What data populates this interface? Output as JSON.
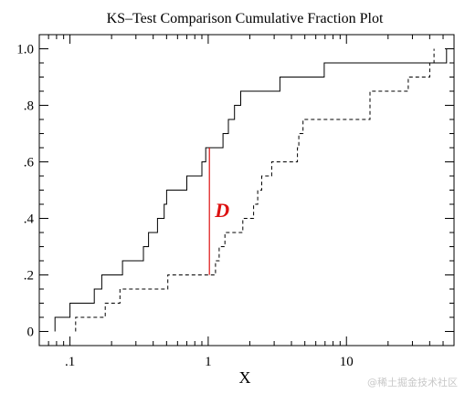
{
  "watermark": "@稀土掘金技术社区",
  "chart_data": {
    "type": "line",
    "title": "KS–Test Comparison Cumulative Fraction Plot",
    "xlabel": "X",
    "ylabel": "",
    "xscale": "log",
    "xlim": [
      0.06,
      60
    ],
    "ylim": [
      -0.05,
      1.05
    ],
    "x_ticks": [
      {
        "value": 0.1,
        "label": ".1"
      },
      {
        "value": 1,
        "label": "1"
      },
      {
        "value": 10,
        "label": "10"
      }
    ],
    "y_ticks": [
      {
        "value": 0,
        "label": "0"
      },
      {
        "value": 0.2,
        "label": ".2"
      },
      {
        "value": 0.4,
        "label": ".4"
      },
      {
        "value": 0.6,
        "label": ".6"
      },
      {
        "value": 0.8,
        "label": ".8"
      },
      {
        "value": 1.0,
        "label": "1.0"
      }
    ],
    "grid": false,
    "legend": "none",
    "series": [
      {
        "style": "solid",
        "color": "#000000",
        "points": [
          [
            0.078,
            0
          ],
          [
            0.078,
            0.05
          ],
          [
            0.1,
            0.05
          ],
          [
            0.1,
            0.1
          ],
          [
            0.15,
            0.1
          ],
          [
            0.15,
            0.15
          ],
          [
            0.17,
            0.15
          ],
          [
            0.17,
            0.2
          ],
          [
            0.24,
            0.2
          ],
          [
            0.24,
            0.25
          ],
          [
            0.34,
            0.25
          ],
          [
            0.34,
            0.3
          ],
          [
            0.37,
            0.3
          ],
          [
            0.37,
            0.35
          ],
          [
            0.43,
            0.35
          ],
          [
            0.43,
            0.4
          ],
          [
            0.48,
            0.4
          ],
          [
            0.48,
            0.45
          ],
          [
            0.5,
            0.45
          ],
          [
            0.5,
            0.5
          ],
          [
            0.7,
            0.5
          ],
          [
            0.7,
            0.55
          ],
          [
            0.9,
            0.55
          ],
          [
            0.9,
            0.6
          ],
          [
            0.96,
            0.6
          ],
          [
            0.96,
            0.65
          ],
          [
            1.28,
            0.65
          ],
          [
            1.28,
            0.7
          ],
          [
            1.4,
            0.7
          ],
          [
            1.4,
            0.75
          ],
          [
            1.55,
            0.75
          ],
          [
            1.55,
            0.8
          ],
          [
            1.72,
            0.8
          ],
          [
            1.72,
            0.85
          ],
          [
            3.3,
            0.85
          ],
          [
            3.3,
            0.9
          ],
          [
            6.9,
            0.9
          ],
          [
            6.9,
            0.95
          ],
          [
            53,
            0.95
          ],
          [
            53,
            1.0
          ]
        ]
      },
      {
        "style": "dashed",
        "color": "#000000",
        "points": [
          [
            0.11,
            0
          ],
          [
            0.11,
            0.05
          ],
          [
            0.18,
            0.05
          ],
          [
            0.18,
            0.1
          ],
          [
            0.23,
            0.1
          ],
          [
            0.23,
            0.15
          ],
          [
            0.51,
            0.15
          ],
          [
            0.51,
            0.2
          ],
          [
            1.13,
            0.2
          ],
          [
            1.13,
            0.25
          ],
          [
            1.2,
            0.25
          ],
          [
            1.2,
            0.3
          ],
          [
            1.32,
            0.3
          ],
          [
            1.32,
            0.35
          ],
          [
            1.78,
            0.35
          ],
          [
            1.78,
            0.4
          ],
          [
            2.13,
            0.4
          ],
          [
            2.13,
            0.45
          ],
          [
            2.28,
            0.45
          ],
          [
            2.28,
            0.5
          ],
          [
            2.44,
            0.5
          ],
          [
            2.44,
            0.55
          ],
          [
            2.88,
            0.55
          ],
          [
            2.88,
            0.6
          ],
          [
            4.42,
            0.6
          ],
          [
            4.42,
            0.65
          ],
          [
            4.52,
            0.65
          ],
          [
            4.52,
            0.7
          ],
          [
            4.85,
            0.7
          ],
          [
            4.85,
            0.75
          ],
          [
            14.8,
            0.75
          ],
          [
            14.8,
            0.85
          ],
          [
            28,
            0.85
          ],
          [
            28,
            0.9
          ],
          [
            40,
            0.9
          ],
          [
            40,
            0.95
          ],
          [
            43,
            0.95
          ],
          [
            43,
            1.0
          ]
        ]
      }
    ],
    "annotations": [
      {
        "label": "D",
        "color": "#dd1111",
        "x": 1.02,
        "y_from": 0.2,
        "y_to": 0.65
      }
    ]
  }
}
